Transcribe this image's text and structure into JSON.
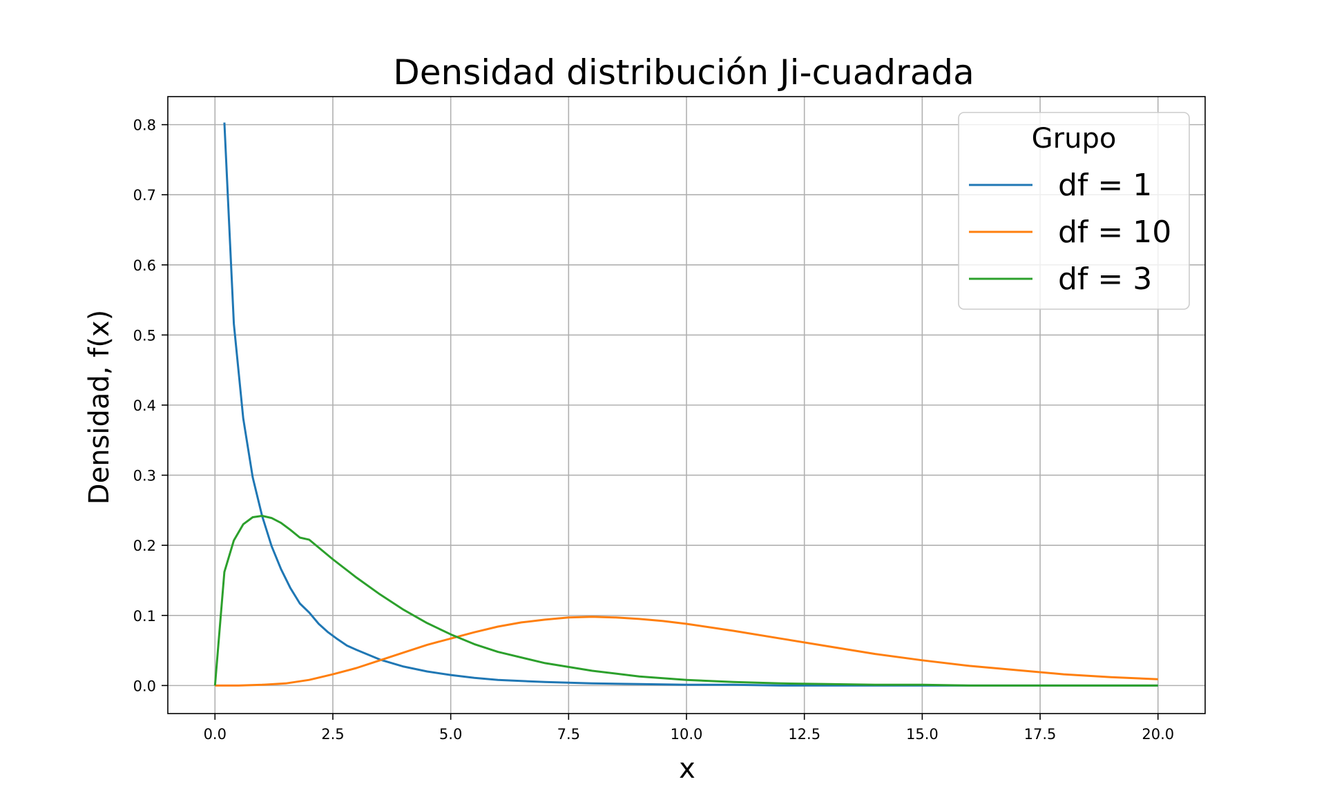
{
  "chart_data": {
    "type": "line",
    "title": "Densidad distribución Ji-cuadrada",
    "xlabel": "x",
    "ylabel": "Densidad, f(x)",
    "xlim": [
      -1.0,
      21.0
    ],
    "ylim": [
      -0.04,
      0.84
    ],
    "x_ticks": [
      0.0,
      2.5,
      5.0,
      7.5,
      10.0,
      12.5,
      15.0,
      17.5,
      20.0
    ],
    "x_tick_labels": [
      "0.0",
      "2.5",
      "5.0",
      "7.5",
      "10.0",
      "12.5",
      "15.0",
      "17.5",
      "20.0"
    ],
    "y_ticks": [
      0.0,
      0.1,
      0.2,
      0.3,
      0.4,
      0.5,
      0.6,
      0.7,
      0.8
    ],
    "y_tick_labels": [
      "0.0",
      "0.1",
      "0.2",
      "0.3",
      "0.4",
      "0.5",
      "0.6",
      "0.7",
      "0.8"
    ],
    "grid": true,
    "legend": {
      "title": "Grupo",
      "placement": "top-right",
      "entries": [
        "df = 1",
        "df = 10",
        "df = 3"
      ]
    },
    "series": [
      {
        "name": "df = 1",
        "color": "#1f77b4",
        "x": [
          0.2,
          0.4,
          0.6,
          0.8,
          1.0,
          1.2,
          1.4,
          1.6,
          1.8,
          2.0,
          2.2,
          2.4,
          2.6,
          2.8,
          3.0,
          3.5,
          4.0,
          4.5,
          5.0,
          5.5,
          6.0,
          7.0,
          8.0,
          9.0,
          10.0,
          11.0,
          12.0,
          13.0,
          14.0,
          15.0,
          16.0,
          17.0,
          18.0,
          19.0,
          20.0
        ],
        "y": [
          0.803,
          0.516,
          0.381,
          0.297,
          0.242,
          0.199,
          0.166,
          0.139,
          0.117,
          0.104,
          0.088,
          0.076,
          0.066,
          0.057,
          0.051,
          0.037,
          0.027,
          0.02,
          0.015,
          0.011,
          0.008,
          0.005,
          0.003,
          0.002,
          0.001,
          0.001,
          0.0,
          0.0,
          0.0,
          0.0,
          0.0,
          0.0,
          0.0,
          0.0,
          0.0
        ]
      },
      {
        "name": "df = 10",
        "color": "#ff7f0e",
        "x": [
          0.0,
          0.5,
          1.0,
          1.5,
          2.0,
          2.5,
          3.0,
          3.5,
          4.0,
          4.5,
          5.0,
          5.5,
          6.0,
          6.5,
          7.0,
          7.5,
          8.0,
          8.5,
          9.0,
          9.5,
          10.0,
          11.0,
          12.0,
          13.0,
          14.0,
          15.0,
          16.0,
          17.0,
          18.0,
          19.0,
          20.0
        ],
        "y": [
          0.0,
          0.0,
          0.001,
          0.003,
          0.008,
          0.016,
          0.025,
          0.036,
          0.047,
          0.058,
          0.067,
          0.076,
          0.084,
          0.09,
          0.094,
          0.097,
          0.098,
          0.097,
          0.095,
          0.092,
          0.088,
          0.078,
          0.067,
          0.056,
          0.045,
          0.036,
          0.028,
          0.022,
          0.016,
          0.012,
          0.009
        ]
      },
      {
        "name": "df = 3",
        "color": "#2ca02c",
        "x": [
          0.0,
          0.2,
          0.4,
          0.6,
          0.8,
          1.0,
          1.2,
          1.4,
          1.6,
          1.8,
          2.0,
          2.5,
          3.0,
          3.5,
          4.0,
          4.5,
          5.0,
          5.5,
          6.0,
          7.0,
          8.0,
          9.0,
          10.0,
          11.0,
          12.0,
          13.0,
          14.0,
          15.0,
          16.0,
          17.0,
          18.0,
          19.0,
          20.0
        ],
        "y": [
          0.0,
          0.162,
          0.207,
          0.23,
          0.24,
          0.242,
          0.239,
          0.232,
          0.222,
          0.211,
          0.208,
          0.18,
          0.154,
          0.13,
          0.108,
          0.089,
          0.073,
          0.059,
          0.048,
          0.032,
          0.021,
          0.013,
          0.008,
          0.005,
          0.003,
          0.002,
          0.001,
          0.001,
          0.0,
          0.0,
          0.0,
          0.0,
          0.0
        ]
      }
    ]
  }
}
